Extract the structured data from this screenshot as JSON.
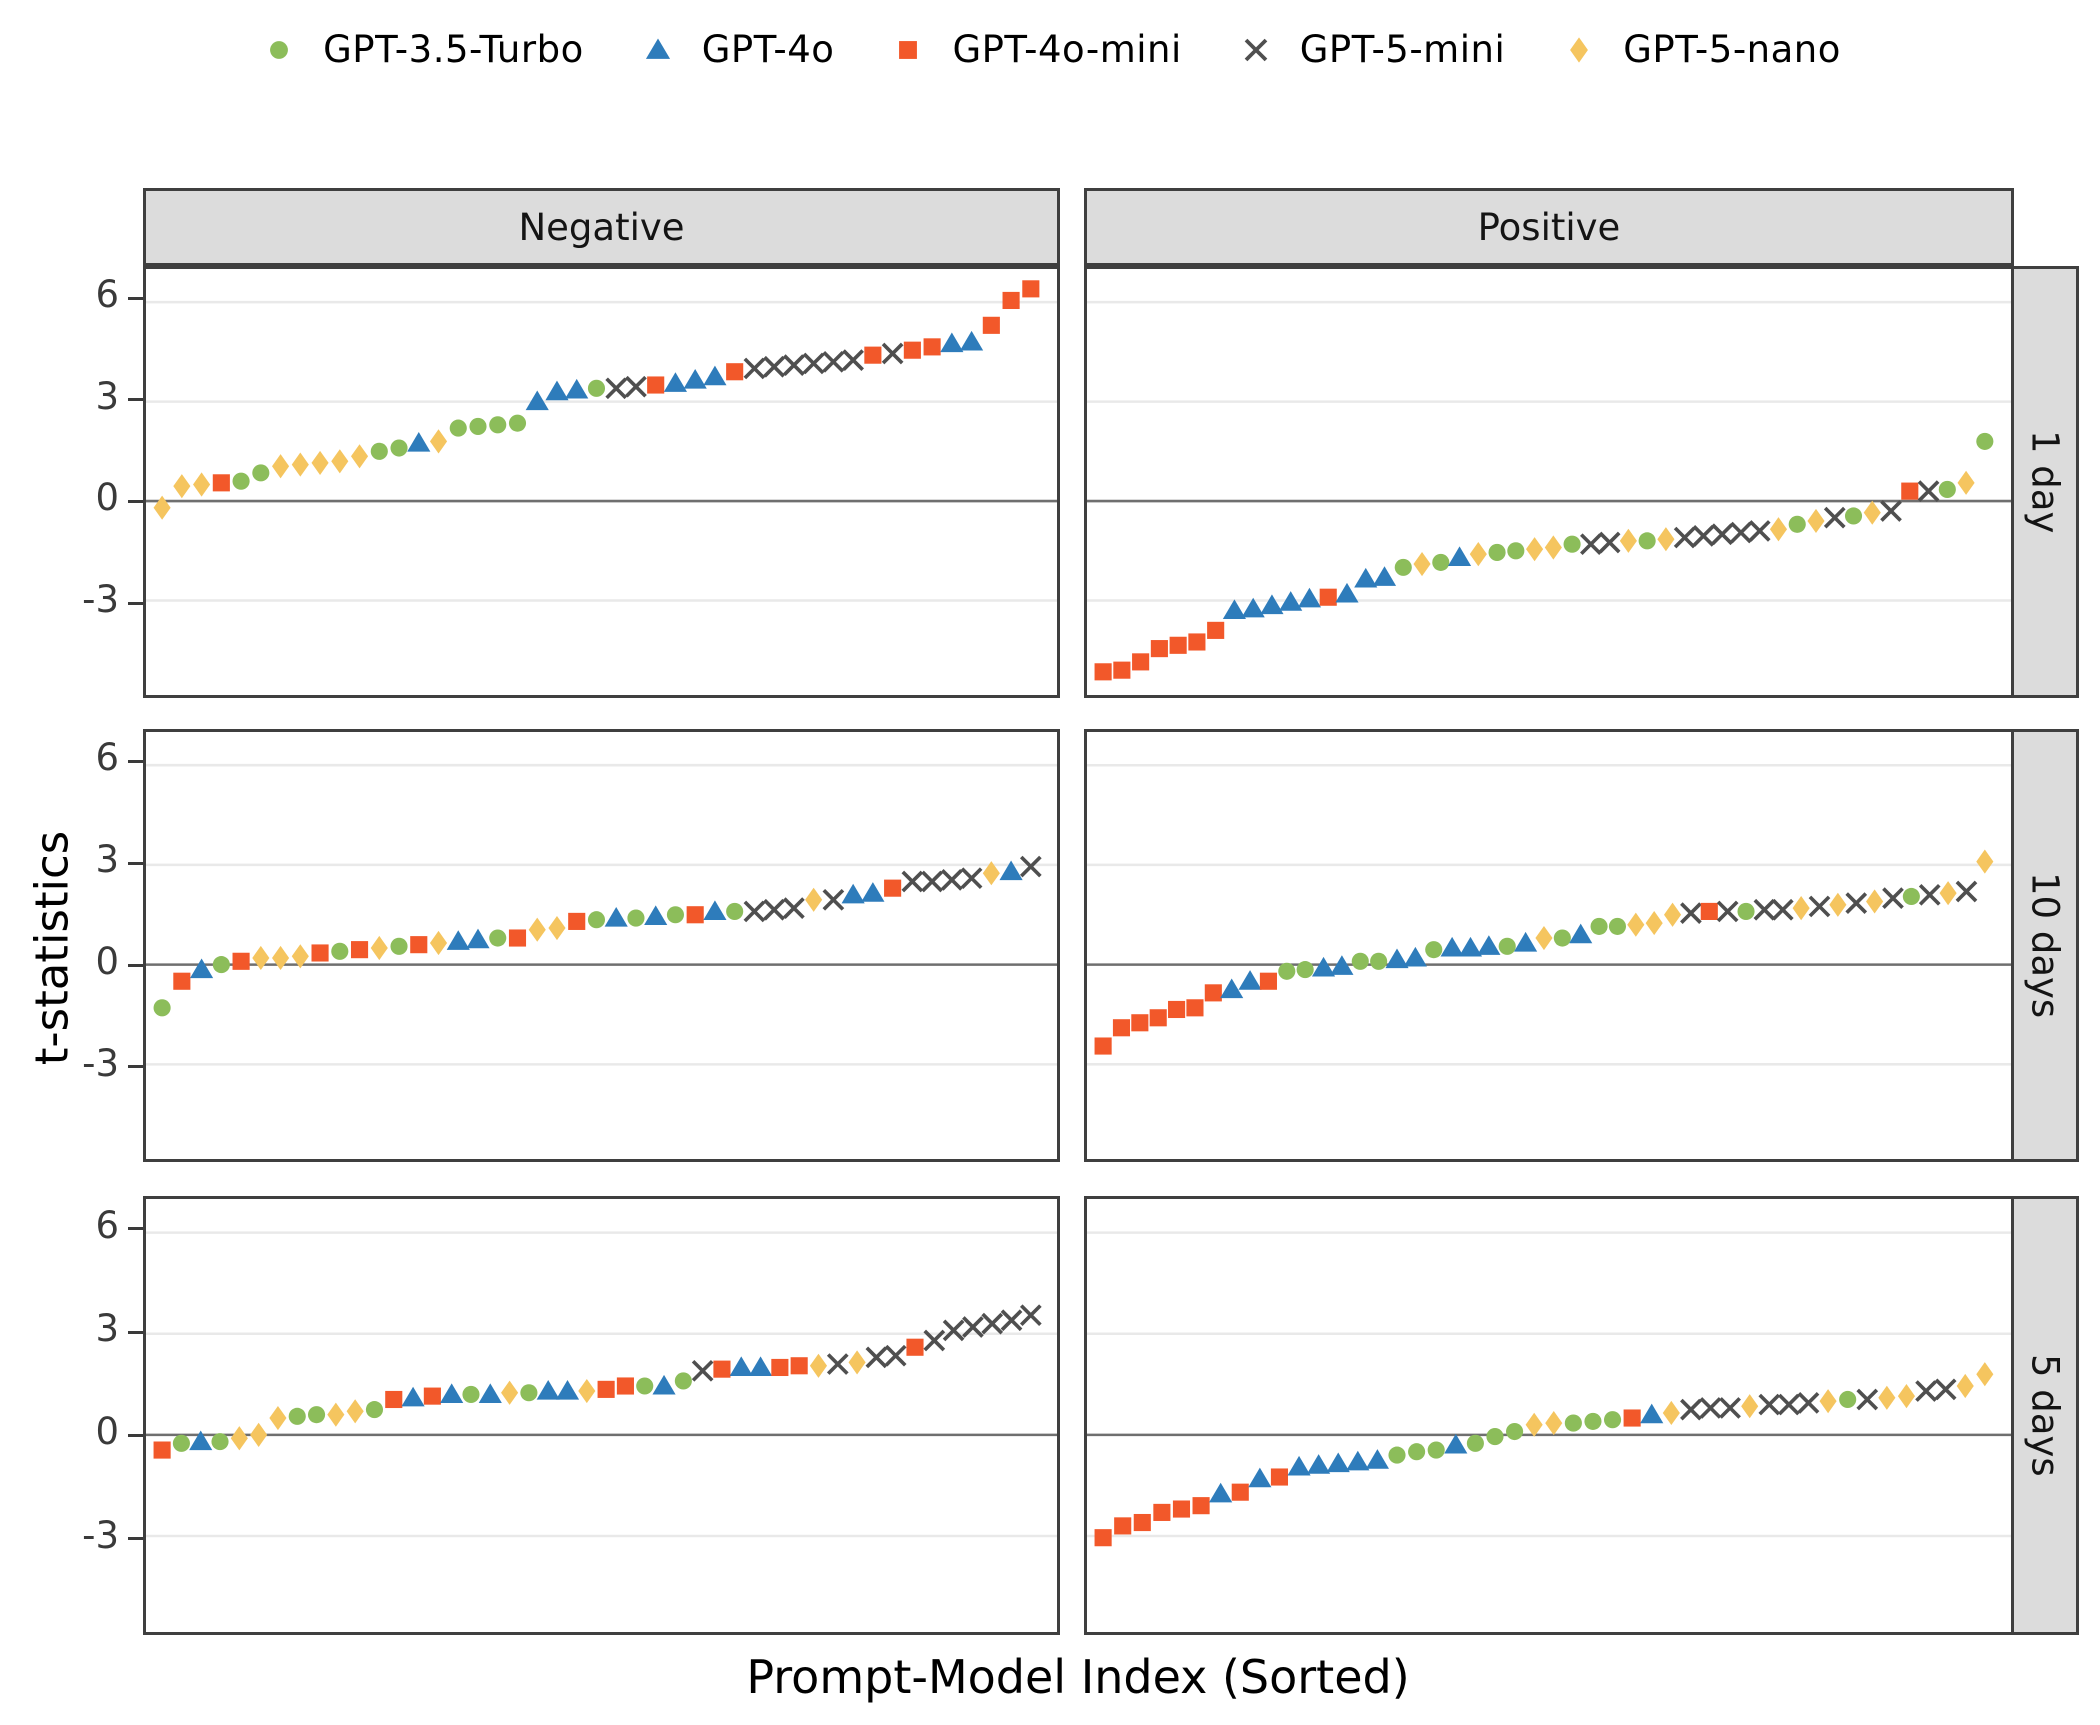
{
  "legend": [
    {
      "code": "t35",
      "label": "GPT-3.5-Turbo",
      "marker": "circle",
      "color": "#8CBD5A"
    },
    {
      "code": "4o",
      "label": "GPT-4o",
      "marker": "triangle",
      "color": "#2E7CBB"
    },
    {
      "code": "4om",
      "label": "GPT-4o-mini",
      "marker": "square",
      "color": "#F2582A"
    },
    {
      "code": "5m",
      "label": "GPT-5-mini",
      "marker": "x",
      "color": "#4F4F4F"
    },
    {
      "code": "5n",
      "label": "GPT-5-nano",
      "marker": "diamond",
      "color": "#F5C55F"
    }
  ],
  "axes": {
    "y_label": "t-statistics",
    "x_label": "Prompt-Model Index (Sorted)",
    "y_ticks": [
      6,
      3,
      0,
      -3
    ],
    "ylim": [
      -5.8,
      6.95
    ]
  },
  "facets": {
    "cols": [
      "Negative",
      "Positive"
    ],
    "rows": [
      "1 day",
      "10 days",
      "5 days"
    ]
  },
  "style": {
    "grid_color": "#e9e9e9",
    "zero_line_color": "#6f6f6f",
    "panel_border_color": "#3f3f3f",
    "strip_bg": "#dcdcdc"
  },
  "chart_data": {
    "type": "scatter",
    "x_definition": "sorted index within each panel (0..N-1)",
    "point_format": [
      "model_code",
      "t_statistic"
    ],
    "panels": [
      {
        "col": "Negative",
        "row": "1 day",
        "points": [
          [
            "5n",
            -0.2
          ],
          [
            "5n",
            0.45
          ],
          [
            "5n",
            0.5
          ],
          [
            "4om",
            0.55
          ],
          [
            "t35",
            0.6
          ],
          [
            "t35",
            0.85
          ],
          [
            "5n",
            1.05
          ],
          [
            "5n",
            1.1
          ],
          [
            "5n",
            1.15
          ],
          [
            "5n",
            1.2
          ],
          [
            "5n",
            1.35
          ],
          [
            "t35",
            1.5
          ],
          [
            "t35",
            1.6
          ],
          [
            "4o",
            1.75
          ],
          [
            "5n",
            1.8
          ],
          [
            "t35",
            2.2
          ],
          [
            "t35",
            2.25
          ],
          [
            "t35",
            2.3
          ],
          [
            "t35",
            2.35
          ],
          [
            "4o",
            3.0
          ],
          [
            "4o",
            3.3
          ],
          [
            "4o",
            3.35
          ],
          [
            "t35",
            3.4
          ],
          [
            "5m",
            3.4
          ],
          [
            "5m",
            3.45
          ],
          [
            "4om",
            3.5
          ],
          [
            "4o",
            3.55
          ],
          [
            "4o",
            3.65
          ],
          [
            "4o",
            3.75
          ],
          [
            "4om",
            3.9
          ],
          [
            "5m",
            4.0
          ],
          [
            "5m",
            4.05
          ],
          [
            "5m",
            4.1
          ],
          [
            "5m",
            4.15
          ],
          [
            "5m",
            4.2
          ],
          [
            "5m",
            4.25
          ],
          [
            "4om",
            4.4
          ],
          [
            "5m",
            4.45
          ],
          [
            "4om",
            4.55
          ],
          [
            "4om",
            4.65
          ],
          [
            "4o",
            4.75
          ],
          [
            "4o",
            4.8
          ],
          [
            "4om",
            5.3
          ],
          [
            "4om",
            6.05
          ],
          [
            "4om",
            6.4
          ]
        ]
      },
      {
        "col": "Positive",
        "row": "1 day",
        "points": [
          [
            "4om",
            -5.15
          ],
          [
            "4om",
            -5.1
          ],
          [
            "4om",
            -4.85
          ],
          [
            "4om",
            -4.45
          ],
          [
            "4om",
            -4.35
          ],
          [
            "4om",
            -4.25
          ],
          [
            "4om",
            -3.9
          ],
          [
            "4o",
            -3.3
          ],
          [
            "4o",
            -3.25
          ],
          [
            "4o",
            -3.15
          ],
          [
            "4o",
            -3.05
          ],
          [
            "4o",
            -2.95
          ],
          [
            "4om",
            -2.9
          ],
          [
            "4o",
            -2.8
          ],
          [
            "4o",
            -2.35
          ],
          [
            "4o",
            -2.3
          ],
          [
            "t35",
            -2.0
          ],
          [
            "5n",
            -1.9
          ],
          [
            "t35",
            -1.85
          ],
          [
            "4o",
            -1.7
          ],
          [
            "5n",
            -1.6
          ],
          [
            "t35",
            -1.55
          ],
          [
            "t35",
            -1.5
          ],
          [
            "5n",
            -1.45
          ],
          [
            "5n",
            -1.4
          ],
          [
            "t35",
            -1.3
          ],
          [
            "5m",
            -1.3
          ],
          [
            "5m",
            -1.25
          ],
          [
            "5n",
            -1.2
          ],
          [
            "t35",
            -1.2
          ],
          [
            "5n",
            -1.15
          ],
          [
            "5m",
            -1.1
          ],
          [
            "5m",
            -1.05
          ],
          [
            "5m",
            -1.0
          ],
          [
            "5m",
            -0.95
          ],
          [
            "5m",
            -0.9
          ],
          [
            "5n",
            -0.85
          ],
          [
            "t35",
            -0.7
          ],
          [
            "5n",
            -0.6
          ],
          [
            "5m",
            -0.5
          ],
          [
            "t35",
            -0.45
          ],
          [
            "5n",
            -0.35
          ],
          [
            "5m",
            -0.3
          ],
          [
            "4om",
            0.3
          ],
          [
            "5m",
            0.3
          ],
          [
            "t35",
            0.35
          ],
          [
            "5n",
            0.55
          ],
          [
            "t35",
            1.8
          ]
        ]
      },
      {
        "col": "Negative",
        "row": "10 days",
        "points": [
          [
            "t35",
            -1.3
          ],
          [
            "4om",
            -0.5
          ],
          [
            "4o",
            -0.15
          ],
          [
            "t35",
            0.0
          ],
          [
            "4om",
            0.1
          ],
          [
            "5n",
            0.2
          ],
          [
            "5n",
            0.2
          ],
          [
            "5n",
            0.25
          ],
          [
            "4om",
            0.35
          ],
          [
            "t35",
            0.4
          ],
          [
            "4om",
            0.45
          ],
          [
            "5n",
            0.5
          ],
          [
            "t35",
            0.55
          ],
          [
            "4om",
            0.6
          ],
          [
            "5n",
            0.65
          ],
          [
            "4o",
            0.7
          ],
          [
            "4o",
            0.75
          ],
          [
            "t35",
            0.8
          ],
          [
            "4om",
            0.8
          ],
          [
            "5n",
            1.05
          ],
          [
            "5n",
            1.1
          ],
          [
            "4om",
            1.3
          ],
          [
            "t35",
            1.35
          ],
          [
            "4o",
            1.4
          ],
          [
            "t35",
            1.4
          ],
          [
            "4o",
            1.45
          ],
          [
            "t35",
            1.5
          ],
          [
            "4om",
            1.5
          ],
          [
            "4o",
            1.6
          ],
          [
            "t35",
            1.6
          ],
          [
            "5m",
            1.6
          ],
          [
            "5m",
            1.65
          ],
          [
            "5m",
            1.7
          ],
          [
            "5n",
            1.95
          ],
          [
            "5m",
            1.95
          ],
          [
            "4o",
            2.1
          ],
          [
            "4o",
            2.15
          ],
          [
            "4om",
            2.3
          ],
          [
            "5m",
            2.5
          ],
          [
            "5m",
            2.5
          ],
          [
            "5m",
            2.55
          ],
          [
            "5m",
            2.6
          ],
          [
            "5n",
            2.75
          ],
          [
            "4o",
            2.8
          ],
          [
            "5m",
            2.95
          ]
        ]
      },
      {
        "col": "Positive",
        "row": "10 days",
        "points": [
          [
            "4om",
            -2.45
          ],
          [
            "4om",
            -1.9
          ],
          [
            "4om",
            -1.75
          ],
          [
            "4om",
            -1.6
          ],
          [
            "4om",
            -1.35
          ],
          [
            "4om",
            -1.3
          ],
          [
            "4om",
            -0.85
          ],
          [
            "4o",
            -0.75
          ],
          [
            "4o",
            -0.5
          ],
          [
            "4om",
            -0.5
          ],
          [
            "t35",
            -0.2
          ],
          [
            "t35",
            -0.15
          ],
          [
            "4o",
            -0.1
          ],
          [
            "4o",
            -0.05
          ],
          [
            "t35",
            0.1
          ],
          [
            "t35",
            0.1
          ],
          [
            "4o",
            0.15
          ],
          [
            "4o",
            0.2
          ],
          [
            "t35",
            0.45
          ],
          [
            "4o",
            0.5
          ],
          [
            "4o",
            0.5
          ],
          [
            "4o",
            0.55
          ],
          [
            "t35",
            0.55
          ],
          [
            "4o",
            0.65
          ],
          [
            "5n",
            0.8
          ],
          [
            "t35",
            0.8
          ],
          [
            "4o",
            0.9
          ],
          [
            "t35",
            1.15
          ],
          [
            "t35",
            1.15
          ],
          [
            "5n",
            1.2
          ],
          [
            "5n",
            1.25
          ],
          [
            "5n",
            1.5
          ],
          [
            "5m",
            1.55
          ],
          [
            "4om",
            1.6
          ],
          [
            "5m",
            1.6
          ],
          [
            "t35",
            1.6
          ],
          [
            "5m",
            1.65
          ],
          [
            "5m",
            1.65
          ],
          [
            "5n",
            1.7
          ],
          [
            "5m",
            1.75
          ],
          [
            "5n",
            1.8
          ],
          [
            "5m",
            1.85
          ],
          [
            "5n",
            1.9
          ],
          [
            "5m",
            2.0
          ],
          [
            "t35",
            2.05
          ],
          [
            "5m",
            2.1
          ],
          [
            "5n",
            2.15
          ],
          [
            "5m",
            2.2
          ],
          [
            "5n",
            3.1
          ]
        ]
      },
      {
        "col": "Negative",
        "row": "5 days",
        "points": [
          [
            "4om",
            -0.45
          ],
          [
            "t35",
            -0.25
          ],
          [
            "4o",
            -0.2
          ],
          [
            "t35",
            -0.2
          ],
          [
            "5n",
            -0.1
          ],
          [
            "5n",
            0.0
          ],
          [
            "5n",
            0.5
          ],
          [
            "t35",
            0.55
          ],
          [
            "t35",
            0.6
          ],
          [
            "5n",
            0.6
          ],
          [
            "5n",
            0.7
          ],
          [
            "t35",
            0.75
          ],
          [
            "4om",
            1.05
          ],
          [
            "4o",
            1.1
          ],
          [
            "4om",
            1.15
          ],
          [
            "4o",
            1.2
          ],
          [
            "t35",
            1.2
          ],
          [
            "4o",
            1.2
          ],
          [
            "5n",
            1.25
          ],
          [
            "t35",
            1.25
          ],
          [
            "4o",
            1.3
          ],
          [
            "4o",
            1.3
          ],
          [
            "5n",
            1.3
          ],
          [
            "4om",
            1.35
          ],
          [
            "4om",
            1.45
          ],
          [
            "t35",
            1.45
          ],
          [
            "4o",
            1.45
          ],
          [
            "t35",
            1.6
          ],
          [
            "5m",
            1.9
          ],
          [
            "4om",
            1.95
          ],
          [
            "4o",
            2.0
          ],
          [
            "4o",
            2.0
          ],
          [
            "4om",
            2.0
          ],
          [
            "4om",
            2.05
          ],
          [
            "5n",
            2.05
          ],
          [
            "5m",
            2.1
          ],
          [
            "5n",
            2.15
          ],
          [
            "5m",
            2.3
          ],
          [
            "5m",
            2.35
          ],
          [
            "4om",
            2.6
          ],
          [
            "5m",
            2.8
          ],
          [
            "5m",
            3.1
          ],
          [
            "5m",
            3.2
          ],
          [
            "5m",
            3.3
          ],
          [
            "5m",
            3.4
          ],
          [
            "5m",
            3.55
          ]
        ]
      },
      {
        "col": "Positive",
        "row": "5 days",
        "points": [
          [
            "4om",
            -3.05
          ],
          [
            "4om",
            -2.7
          ],
          [
            "4om",
            -2.6
          ],
          [
            "4om",
            -2.3
          ],
          [
            "4om",
            -2.2
          ],
          [
            "4om",
            -2.1
          ],
          [
            "4o",
            -1.75
          ],
          [
            "4om",
            -1.7
          ],
          [
            "4o",
            -1.3
          ],
          [
            "4om",
            -1.25
          ],
          [
            "4o",
            -0.95
          ],
          [
            "4o",
            -0.9
          ],
          [
            "4o",
            -0.85
          ],
          [
            "4o",
            -0.8
          ],
          [
            "4o",
            -0.75
          ],
          [
            "t35",
            -0.6
          ],
          [
            "t35",
            -0.5
          ],
          [
            "t35",
            -0.45
          ],
          [
            "4o",
            -0.3
          ],
          [
            "t35",
            -0.25
          ],
          [
            "t35",
            -0.05
          ],
          [
            "t35",
            0.1
          ],
          [
            "5n",
            0.3
          ],
          [
            "5n",
            0.35
          ],
          [
            "t35",
            0.35
          ],
          [
            "t35",
            0.4
          ],
          [
            "t35",
            0.45
          ],
          [
            "4om",
            0.5
          ],
          [
            "4o",
            0.6
          ],
          [
            "5n",
            0.65
          ],
          [
            "5m",
            0.75
          ],
          [
            "5m",
            0.8
          ],
          [
            "5m",
            0.8
          ],
          [
            "5n",
            0.85
          ],
          [
            "5m",
            0.9
          ],
          [
            "5m",
            0.9
          ],
          [
            "5m",
            0.95
          ],
          [
            "5n",
            1.0
          ],
          [
            "t35",
            1.05
          ],
          [
            "5m",
            1.05
          ],
          [
            "5n",
            1.1
          ],
          [
            "5n",
            1.15
          ],
          [
            "5m",
            1.3
          ],
          [
            "5m",
            1.35
          ],
          [
            "5n",
            1.45
          ],
          [
            "5n",
            1.8
          ]
        ]
      }
    ]
  }
}
